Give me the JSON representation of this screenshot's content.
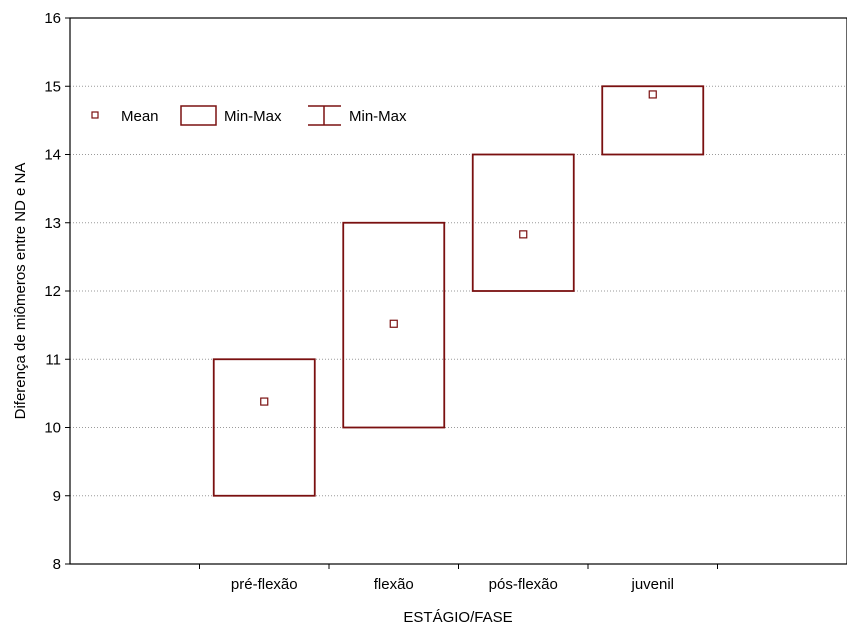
{
  "chart_data": {
    "type": "box",
    "xlabel": "ESTÁGIO/FASE",
    "ylabel": "Diferença de miômeros entre ND e NA",
    "ylim": [
      8,
      16
    ],
    "yticks": [
      8,
      9,
      10,
      11,
      12,
      13,
      14,
      15,
      16
    ],
    "categories": [
      "pré-flexão",
      "flexão",
      "pós-flexão",
      "juvenil"
    ],
    "series": [
      {
        "name": "Mean",
        "values": [
          10.38,
          11.52,
          12.83,
          14.88
        ]
      },
      {
        "name": "Min-Max",
        "values": [
          [
            9,
            11
          ],
          [
            10,
            13
          ],
          [
            12,
            14
          ],
          [
            14,
            15
          ]
        ]
      }
    ],
    "legend": {
      "position": "top-left",
      "entries": [
        "Mean",
        "Min-Max",
        "Min-Max"
      ]
    },
    "grid": "horizontal dotted",
    "color": "#7a1010"
  }
}
